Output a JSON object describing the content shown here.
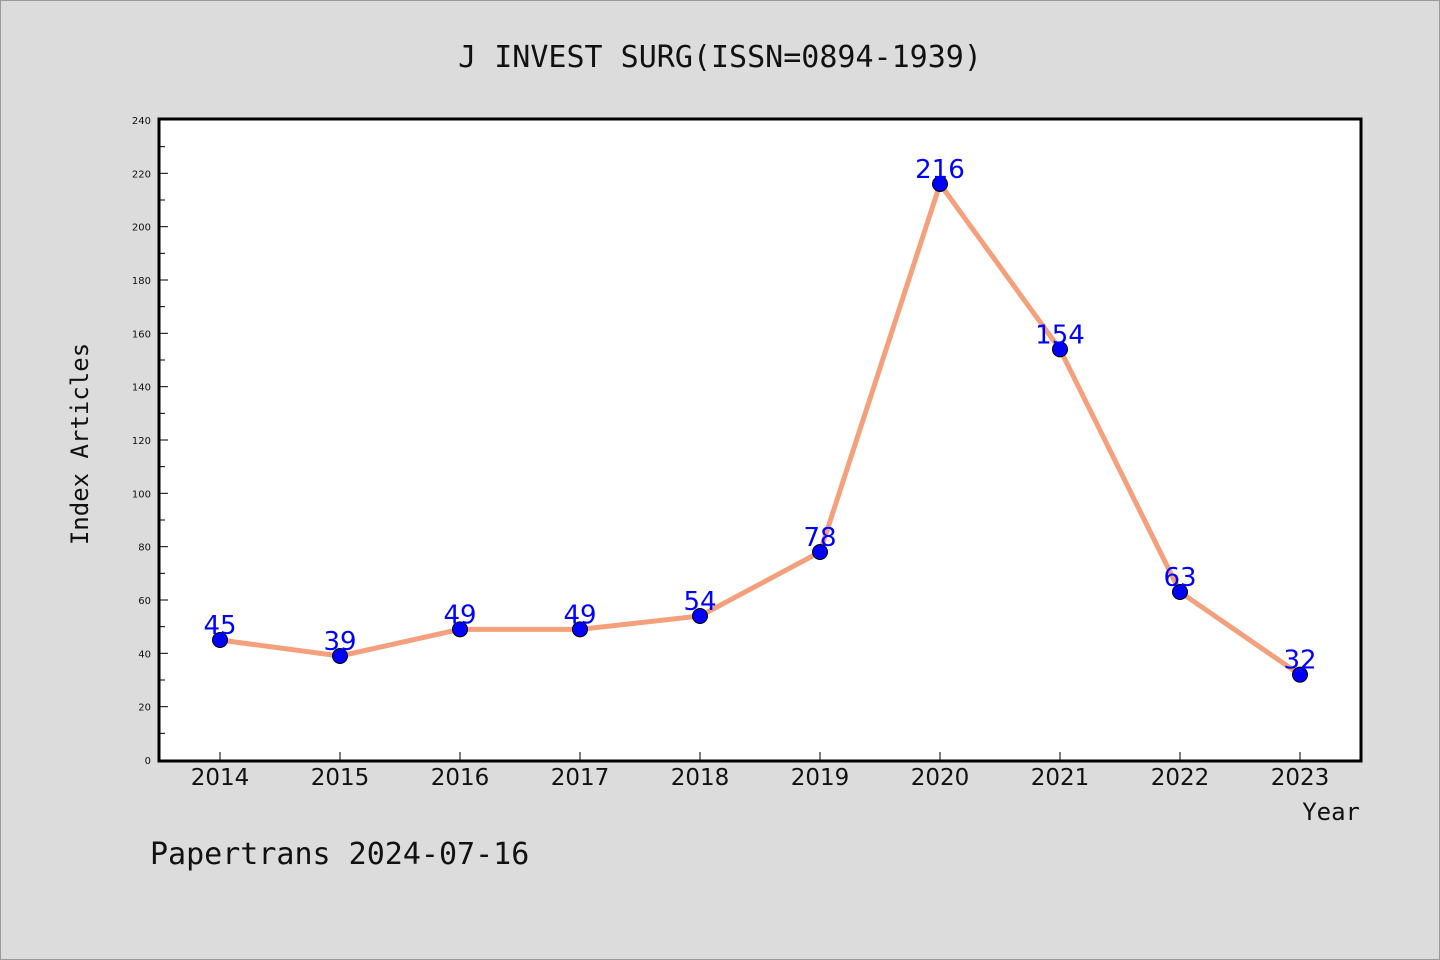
{
  "chart_data": {
    "type": "line",
    "title": "J INVEST SURG(ISSN=0894-1939)",
    "xlabel": "Year",
    "ylabel": "Index Articles",
    "categories": [
      "2014",
      "2015",
      "2016",
      "2017",
      "2018",
      "2019",
      "2020",
      "2021",
      "2022",
      "2023"
    ],
    "series": [
      {
        "values": [
          45,
          39,
          49,
          49,
          54,
          78,
          216,
          154,
          63,
          32
        ]
      }
    ],
    "ylim": [
      0,
      240
    ],
    "y_ticks": [
      "0",
      "20",
      "40",
      "60",
      "80",
      "100",
      "120",
      "140",
      "160",
      "180",
      "200",
      "220",
      "240"
    ],
    "grid": false,
    "legend": "none",
    "colors": {
      "line": "#f4a07c",
      "marker": "#0000ff",
      "data_label": "#0000ff",
      "background": "#dcdcdc",
      "plot_area": "#ffffff"
    }
  },
  "footer": "Papertrans 2024-07-16"
}
